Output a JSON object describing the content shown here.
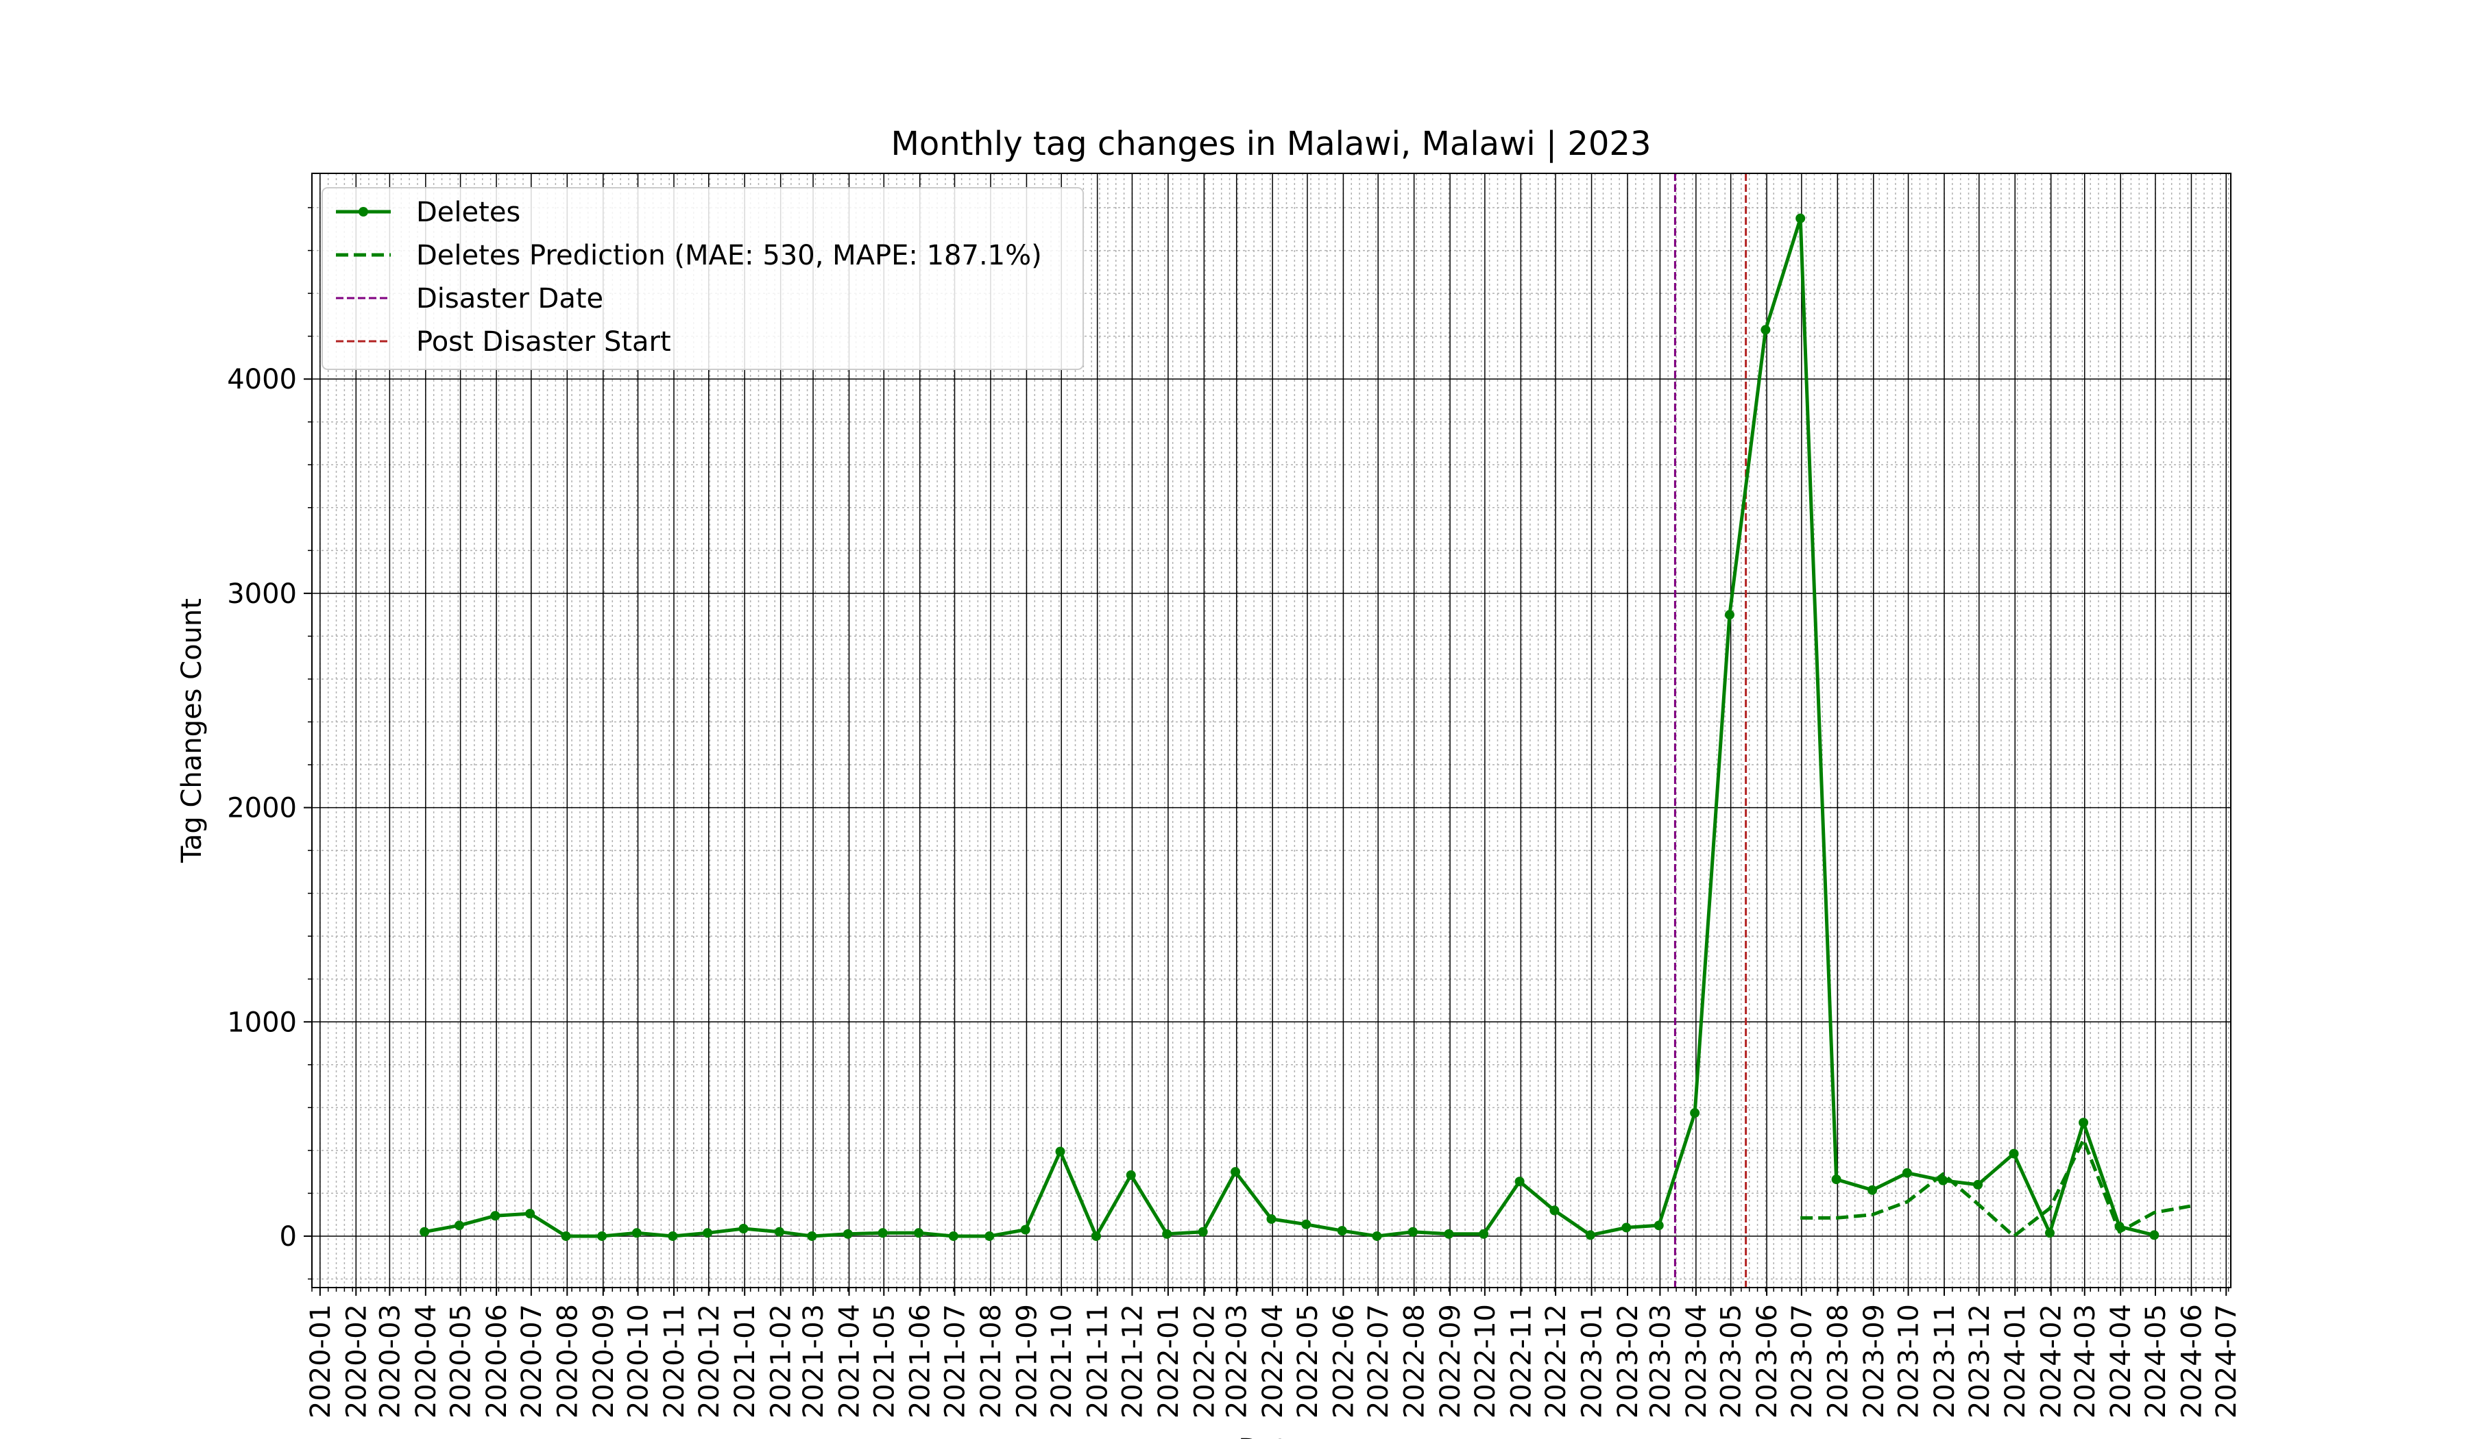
{
  "chart_data": {
    "type": "line",
    "title": "Monthly tag changes in Malawi, Malawi | 2023",
    "xlabel": "Date",
    "ylabel": "Tag Changes Count",
    "ylim": [
      -240,
      4960
    ],
    "yticks": [
      0,
      1000,
      2000,
      3000,
      4000
    ],
    "xlim": [
      "2019-12-25",
      "2024-07-05"
    ],
    "xtick_labels": [
      "2020-01",
      "2020-02",
      "2020-03",
      "2020-04",
      "2020-05",
      "2020-06",
      "2020-07",
      "2020-08",
      "2020-09",
      "2020-10",
      "2020-11",
      "2020-12",
      "2021-01",
      "2021-02",
      "2021-03",
      "2021-04",
      "2021-05",
      "2021-06",
      "2021-07",
      "2021-08",
      "2021-09",
      "2021-10",
      "2021-11",
      "2021-12",
      "2022-01",
      "2022-02",
      "2022-03",
      "2022-04",
      "2022-05",
      "2022-06",
      "2022-07",
      "2022-08",
      "2022-09",
      "2022-10",
      "2022-11",
      "2022-12",
      "2023-01",
      "2023-02",
      "2023-03",
      "2023-04",
      "2023-05",
      "2023-06",
      "2023-07",
      "2023-08",
      "2023-09",
      "2023-10",
      "2023-11",
      "2023-12",
      "2024-01",
      "2024-02",
      "2024-03",
      "2024-04",
      "2024-05",
      "2024-06",
      "2024-07"
    ],
    "grid": true,
    "legend_position": "top-left",
    "series": [
      {
        "name": "Deletes",
        "color": "#008000",
        "style": "solid-with-markers",
        "x": [
          "2020-03-31",
          "2020-04-30",
          "2020-05-31",
          "2020-06-30",
          "2020-07-31",
          "2020-08-31",
          "2020-09-30",
          "2020-10-31",
          "2020-11-30",
          "2020-12-31",
          "2021-01-31",
          "2021-02-28",
          "2021-03-31",
          "2021-04-30",
          "2021-05-31",
          "2021-06-30",
          "2021-07-31",
          "2021-08-31",
          "2021-09-30",
          "2021-10-31",
          "2021-11-30",
          "2021-12-31",
          "2022-01-31",
          "2022-02-28",
          "2022-03-31",
          "2022-04-30",
          "2022-05-31",
          "2022-06-30",
          "2022-07-31",
          "2022-08-31",
          "2022-09-30",
          "2022-10-31",
          "2022-11-30",
          "2022-12-31",
          "2023-01-31",
          "2023-02-28",
          "2023-03-31",
          "2023-04-30",
          "2023-05-31",
          "2023-06-30",
          "2023-07-31",
          "2023-08-31",
          "2023-09-30",
          "2023-10-31",
          "2023-11-30",
          "2023-12-31",
          "2024-01-31",
          "2024-02-29",
          "2024-03-31",
          "2024-04-30"
        ],
        "values": [
          20,
          50,
          95,
          105,
          0,
          0,
          15,
          0,
          15,
          35,
          20,
          0,
          10,
          15,
          15,
          0,
          0,
          30,
          395,
          0,
          285,
          10,
          20,
          300,
          80,
          55,
          25,
          0,
          20,
          10,
          10,
          255,
          120,
          5,
          40,
          50,
          575,
          2900,
          4230,
          4750,
          265,
          215,
          295,
          260,
          240,
          385,
          15,
          530,
          45,
          5
        ]
      },
      {
        "name": "Deletes Prediction (MAE: 530, MAPE: 187.1%)",
        "color": "#008000",
        "style": "dashed",
        "x": [
          "2023-06-30",
          "2023-07-31",
          "2023-08-31",
          "2023-09-30",
          "2023-10-31",
          "2023-11-30",
          "2023-12-31",
          "2024-01-31",
          "2024-02-29",
          "2024-03-31",
          "2024-04-30",
          "2024-05-31"
        ],
        "values": [
          85,
          85,
          100,
          160,
          290,
          150,
          0,
          130,
          450,
          20,
          110,
          140
        ]
      }
    ],
    "vlines": [
      {
        "name": "Disaster Date",
        "x": "2023-03-14",
        "color": "#800080",
        "style": "dashed"
      },
      {
        "name": "Post Disaster Start",
        "x": "2023-05-14",
        "color": "#b22222",
        "style": "dashed"
      }
    ]
  }
}
